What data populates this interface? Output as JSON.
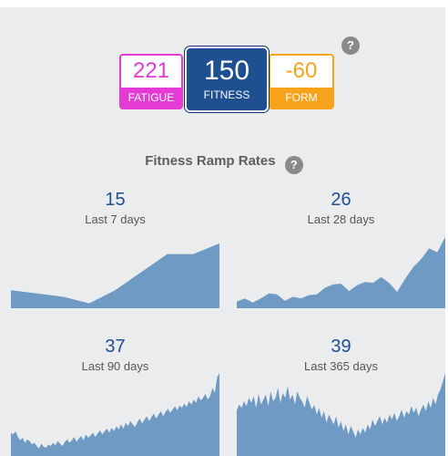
{
  "colors": {
    "fatigue": "#e43bd4",
    "fitness": "#1d4f91",
    "form": "#f7a21b",
    "area": "#6e9ac3",
    "background": "#ebeced"
  },
  "summary": {
    "fatigue": {
      "value": "221",
      "label": "FATIGUE"
    },
    "fitness": {
      "value": "150",
      "label": "FITNESS"
    },
    "form": {
      "value": "-60",
      "label": "FORM"
    },
    "help_icon": "?"
  },
  "ramp_rates": {
    "title": "Fitness Ramp Rates",
    "help_icon": "?"
  },
  "chart_data": [
    {
      "type": "area",
      "value": "15",
      "label": "Last 7 days",
      "values": [
        22,
        18,
        14,
        6,
        22,
        44,
        66,
        66,
        79
      ]
    },
    {
      "type": "area",
      "value": "26",
      "label": "Last 28 days",
      "values": [
        8,
        12,
        7,
        12,
        18,
        17,
        9,
        14,
        12,
        16,
        17,
        25,
        29,
        30,
        21,
        28,
        32,
        31,
        38,
        31,
        20,
        36,
        50,
        60,
        73,
        68,
        87
      ]
    },
    {
      "type": "area",
      "value": "37",
      "label": "Last 90 days",
      "values": [
        28,
        26,
        30,
        23,
        19,
        22,
        16,
        20,
        18,
        14,
        16,
        12,
        9,
        15,
        11,
        10,
        14,
        12,
        16,
        13,
        18,
        15,
        12,
        17,
        20,
        16,
        19,
        23,
        17,
        21,
        24,
        19,
        26,
        22,
        25,
        28,
        23,
        27,
        31,
        26,
        30,
        33,
        28,
        34,
        30,
        36,
        32,
        38,
        33,
        40,
        36,
        42,
        38,
        35,
        41,
        45,
        39,
        44,
        48,
        42,
        47,
        51,
        45,
        50,
        54,
        48,
        53,
        57,
        52,
        56,
        60,
        55,
        61,
        58,
        63,
        59,
        66,
        62,
        68,
        64,
        72,
        67,
        70,
        75,
        68,
        72,
        82,
        76,
        95,
        100
      ]
    },
    {
      "type": "area",
      "value": "39",
      "label": "Last 365 days",
      "values": [
        55,
        62,
        58,
        66,
        60,
        70,
        64,
        72,
        58,
        75,
        62,
        68,
        74,
        60,
        78,
        66,
        70,
        82,
        64,
        76,
        70,
        84,
        68,
        74,
        62,
        78,
        70,
        66,
        58,
        72,
        64,
        56,
        62,
        50,
        58,
        46,
        54,
        40,
        50,
        44,
        38,
        48,
        34,
        42,
        30,
        38,
        26,
        36,
        30,
        22,
        32,
        26,
        34,
        28,
        38,
        32,
        44,
        36,
        42,
        48,
        38,
        46,
        40,
        50,
        44,
        52,
        42,
        48,
        56,
        46,
        54,
        50,
        60,
        52,
        58,
        48,
        56,
        62,
        54,
        66,
        58,
        70,
        62,
        74,
        80,
        90,
        100
      ]
    }
  ]
}
